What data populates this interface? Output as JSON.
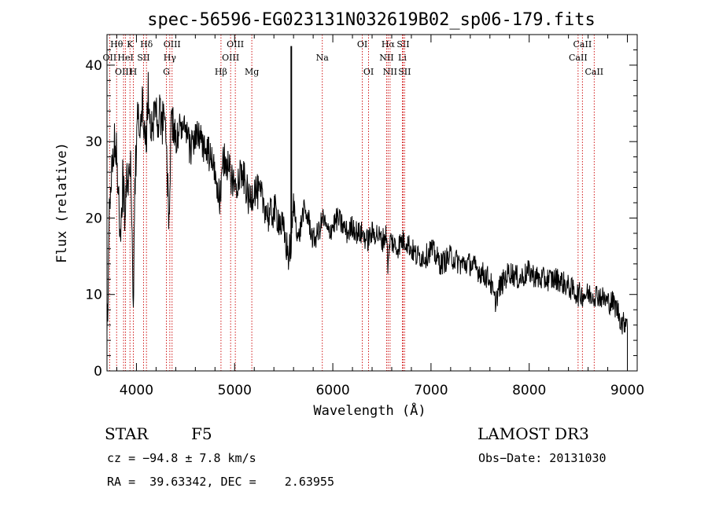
{
  "chart_data": {
    "type": "line",
    "title": "spec-56596-EG023131N032619B02_sp06-179.fits",
    "xlabel": "Wavelength (Å)",
    "ylabel": "Flux (relative)",
    "xlim": [
      3700,
      9100
    ],
    "ylim": [
      0,
      44
    ],
    "xticks": [
      4000,
      5000,
      6000,
      7000,
      8000,
      9000
    ],
    "yticks": [
      0,
      10,
      20,
      30,
      40
    ],
    "series": [
      {
        "name": "flux",
        "x": [
          3700,
          3720,
          3740,
          3760,
          3780,
          3800,
          3820,
          3840,
          3860,
          3880,
          3900,
          3920,
          3940,
          3960,
          3970,
          3980,
          4000,
          4020,
          4040,
          4060,
          4080,
          4100,
          4120,
          4150,
          4200,
          4250,
          4300,
          4330,
          4340,
          4350,
          4380,
          4400,
          4450,
          4500,
          4550,
          4600,
          4650,
          4700,
          4750,
          4800,
          4850,
          4861,
          4880,
          4900,
          4950,
          5000,
          5050,
          5100,
          5150,
          5200,
          5250,
          5300,
          5350,
          5400,
          5450,
          5500,
          5550,
          5580,
          5600,
          5650,
          5700,
          5750,
          5800,
          5850,
          5900,
          5950,
          6000,
          6050,
          6100,
          6150,
          6200,
          6250,
          6300,
          6350,
          6400,
          6450,
          6500,
          6550,
          6563,
          6580,
          6600,
          6650,
          6700,
          6750,
          6800,
          6850,
          6900,
          6950,
          7000,
          7100,
          7200,
          7300,
          7400,
          7500,
          7600,
          7650,
          7700,
          7800,
          7900,
          8000,
          8100,
          8200,
          8300,
          8400,
          8500,
          8600,
          8700,
          8800,
          8850,
          8900,
          8950,
          9000
        ],
        "y": [
          4,
          18,
          25,
          28,
          30,
          29,
          22,
          15,
          26,
          20,
          27,
          24,
          28,
          15,
          9,
          22,
          30,
          34,
          33,
          35,
          31,
          30,
          36,
          32,
          34,
          33,
          31,
          20,
          22,
          33,
          32,
          30,
          32,
          31,
          29,
          31,
          30,
          29,
          28,
          26,
          22,
          23,
          27,
          28,
          26,
          24,
          26,
          25,
          22,
          24,
          23,
          22,
          20,
          21,
          20,
          18,
          15,
          17,
          22,
          17,
          21,
          20,
          17,
          18,
          20,
          18,
          19,
          20,
          19,
          18,
          19,
          18,
          18,
          17,
          18,
          18,
          17,
          18,
          13,
          17,
          17,
          16,
          17,
          17,
          16,
          15,
          15,
          15,
          16,
          14,
          15,
          14,
          14,
          13,
          12,
          9,
          11,
          13,
          12,
          13,
          12,
          12,
          12,
          11,
          10,
          10,
          10,
          9,
          9,
          8,
          6,
          7
        ]
      }
    ],
    "spectral_lines": [
      {
        "label": "Hθ",
        "wave": 3798,
        "row": 0
      },
      {
        "label": "OII",
        "wave": 3727,
        "row": 1
      },
      {
        "label": "OIII",
        "wave": 3869,
        "row": 2
      },
      {
        "label": "K",
        "wave": 3934,
        "row": 0
      },
      {
        "label": "HeI",
        "wave": 3889,
        "row": 1
      },
      {
        "label": "H",
        "wave": 3968,
        "row": 2
      },
      {
        "label": "Hδ",
        "wave": 4102,
        "row": 0
      },
      {
        "label": "SII",
        "wave": 4072,
        "row": 1
      },
      {
        "label": "OIII",
        "wave": 4363,
        "row": 0
      },
      {
        "label": "Hγ",
        "wave": 4340,
        "row": 1
      },
      {
        "label": "G",
        "wave": 4305,
        "row": 2
      },
      {
        "label": "Hβ",
        "wave": 4861,
        "row": 2
      },
      {
        "label": "OIII",
        "wave": 5007,
        "row": 0
      },
      {
        "label": "OIII",
        "wave": 4959,
        "row": 1
      },
      {
        "label": "Mg",
        "wave": 5175,
        "row": 2
      },
      {
        "label": "Na",
        "wave": 5893,
        "row": 1
      },
      {
        "label": "OI",
        "wave": 6300,
        "row": 0
      },
      {
        "label": "OI",
        "wave": 6364,
        "row": 2
      },
      {
        "label": "Hα",
        "wave": 6563,
        "row": 0
      },
      {
        "label": "NII",
        "wave": 6548,
        "row": 1
      },
      {
        "label": "NII",
        "wave": 6583,
        "row": 2
      },
      {
        "label": "SII",
        "wave": 6716,
        "row": 0
      },
      {
        "label": "Li",
        "wave": 6708,
        "row": 1
      },
      {
        "label": "SII",
        "wave": 6731,
        "row": 2
      },
      {
        "label": "CaII",
        "wave": 8542,
        "row": 0
      },
      {
        "label": "CaII",
        "wave": 8498,
        "row": 1
      },
      {
        "label": "CaII",
        "wave": 8662,
        "row": 2
      }
    ],
    "spike": {
      "wave": 5577,
      "value": 42.5
    }
  },
  "info": {
    "object_type": "STAR",
    "subclass": "F5",
    "survey": "LAMOST DR3",
    "cz": "cz = −94.8 ± 7.8 km/s",
    "obs_date": "Obs−Date: 20131030",
    "radec": "RA =  39.63342, DEC =    2.63955"
  },
  "colors": {
    "line_marker": "#cc0000",
    "spectrum": "#000000"
  }
}
